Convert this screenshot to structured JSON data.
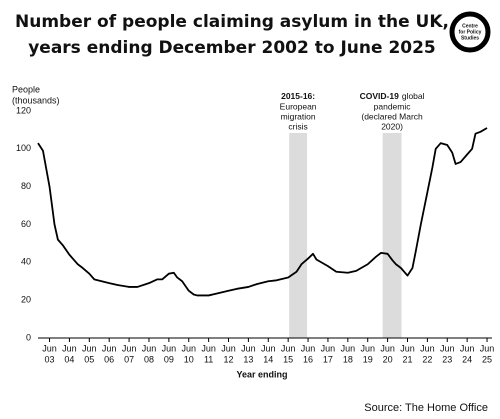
{
  "chart_data": {
    "type": "line",
    "title": [
      "Number of people claiming asylum in the UK,",
      "years ending December 2002 to June 2025"
    ],
    "logo": [
      "Centre",
      "for Policy",
      "Studies"
    ],
    "ylabel": [
      "People",
      "(thousands)"
    ],
    "xlabel": "Year ending",
    "source": "Source: The Home Office",
    "color": "#000000",
    "grid": false,
    "xlim": [
      2002.92,
      2025.75
    ],
    "ylim": [
      0,
      120
    ],
    "yticks": [
      0,
      20,
      40,
      60,
      80,
      100,
      120
    ],
    "xtick_month": "Jun",
    "xticks": [
      {
        "value": 2003.5,
        "label": "03"
      },
      {
        "value": 2004.5,
        "label": "04"
      },
      {
        "value": 2005.5,
        "label": "05"
      },
      {
        "value": 2006.5,
        "label": "06"
      },
      {
        "value": 2007.5,
        "label": "07"
      },
      {
        "value": 2008.5,
        "label": "08"
      },
      {
        "value": 2009.5,
        "label": "09"
      },
      {
        "value": 2010.5,
        "label": "10"
      },
      {
        "value": 2011.5,
        "label": "11"
      },
      {
        "value": 2012.5,
        "label": "12"
      },
      {
        "value": 2013.5,
        "label": "13"
      },
      {
        "value": 2014.5,
        "label": "14"
      },
      {
        "value": 2015.5,
        "label": "15"
      },
      {
        "value": 2016.5,
        "label": "16"
      },
      {
        "value": 2017.5,
        "label": "17"
      },
      {
        "value": 2018.5,
        "label": "18"
      },
      {
        "value": 2019.5,
        "label": "19"
      },
      {
        "value": 2020.5,
        "label": "20"
      },
      {
        "value": 2021.5,
        "label": "21"
      },
      {
        "value": 2022.5,
        "label": "22"
      },
      {
        "value": 2023.5,
        "label": "23"
      },
      {
        "value": 2024.5,
        "label": "24"
      },
      {
        "value": 2025.5,
        "label": "25"
      }
    ],
    "highlights": [
      {
        "start": 2015.55,
        "end": 2016.45,
        "bold": "2015-16:",
        "lines": [
          "European",
          "migration",
          "crisis"
        ]
      },
      {
        "start": 2020.25,
        "end": 2021.2,
        "bold": "COVID-19",
        "text": "global",
        "lines": [
          "pandemic",
          "(declared March",
          "2020)"
        ]
      }
    ],
    "x": [
      2002.92,
      2003.17,
      2003.5,
      2003.75,
      2003.92,
      2004.17,
      2004.5,
      2004.75,
      2004.92,
      2005.17,
      2005.5,
      2005.75,
      2005.92,
      2006.5,
      2006.92,
      2007.5,
      2007.92,
      2008.5,
      2008.92,
      2009.17,
      2009.5,
      2009.75,
      2009.92,
      2010.17,
      2010.5,
      2010.75,
      2010.92,
      2011.5,
      2011.92,
      2012.5,
      2012.92,
      2013.5,
      2013.92,
      2014.5,
      2014.92,
      2015.5,
      2015.92,
      2016.17,
      2016.5,
      2016.75,
      2016.92,
      2017.5,
      2017.92,
      2018.5,
      2018.92,
      2019.5,
      2019.92,
      2020.17,
      2020.5,
      2020.75,
      2020.92,
      2021.17,
      2021.5,
      2021.75,
      2021.92,
      2022.17,
      2022.5,
      2022.75,
      2022.92,
      2023.17,
      2023.5,
      2023.75,
      2023.92,
      2024.17,
      2024.5,
      2024.75,
      2024.92,
      2025.17,
      2025.5
    ],
    "values": [
      103,
      99,
      80,
      60,
      52,
      49,
      44,
      41,
      39,
      37,
      34,
      31,
      30.5,
      29,
      28,
      27,
      27,
      29,
      31,
      31,
      34,
      34.5,
      32,
      30,
      25,
      23,
      22.5,
      22.5,
      23.5,
      25,
      26,
      27,
      28.5,
      30,
      30.5,
      32,
      35,
      39,
      42,
      44.5,
      41.5,
      38,
      35,
      34.5,
      35.5,
      39,
      43,
      45,
      44.5,
      41,
      39,
      37,
      33,
      37,
      46,
      60,
      77,
      90,
      100,
      103,
      102,
      98,
      92,
      93,
      97,
      100,
      108,
      109,
      111
    ]
  }
}
